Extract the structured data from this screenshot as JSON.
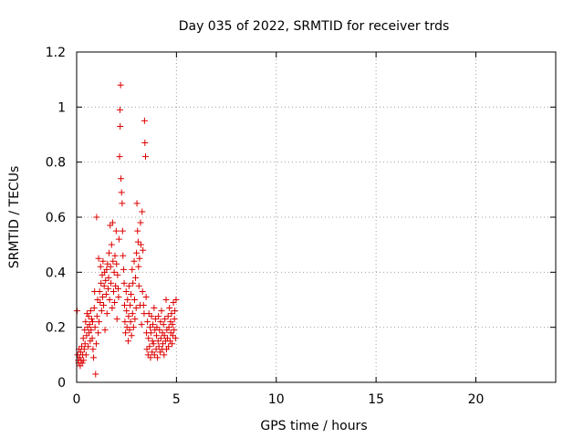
{
  "chart_data": {
    "type": "scatter",
    "title": "Day 035 of 2022, SRMTID for receiver trds",
    "xlabel": "GPS time / hours",
    "ylabel": "SRMTID / TECUs",
    "xlim": [
      0,
      24
    ],
    "ylim": [
      0,
      1.2
    ],
    "x_ticks": [
      0,
      5,
      10,
      15,
      20
    ],
    "x_tick_labels": [
      "0",
      "5",
      "10",
      "15",
      "20"
    ],
    "y_ticks": [
      0,
      0.2,
      0.4,
      0.6,
      0.8,
      1.0,
      1.2
    ],
    "y_tick_labels": [
      "0",
      "0.2",
      "0.4",
      "0.6",
      "0.8",
      "1",
      "1.2"
    ],
    "grid": true,
    "marker": "+",
    "colors": {
      "series": "#dd0000",
      "grid": "#a0a0a0",
      "frame": "#000000"
    },
    "series": [
      {
        "name": "SRMTID",
        "points": [
          [
            0.02,
            0.26
          ],
          [
            0.05,
            0.1
          ],
          [
            0.08,
            0.08
          ],
          [
            0.1,
            0.07
          ],
          [
            0.12,
            0.12
          ],
          [
            0.15,
            0.09
          ],
          [
            0.18,
            0.06
          ],
          [
            0.2,
            0.11
          ],
          [
            0.22,
            0.08
          ],
          [
            0.25,
            0.13
          ],
          [
            0.28,
            0.07
          ],
          [
            0.3,
            0.1
          ],
          [
            0.33,
            0.16
          ],
          [
            0.35,
            0.08
          ],
          [
            0.38,
            0.12
          ],
          [
            0.4,
            0.19
          ],
          [
            0.42,
            0.14
          ],
          [
            0.45,
            0.22
          ],
          [
            0.47,
            0.1
          ],
          [
            0.5,
            0.17
          ],
          [
            0.52,
            0.25
          ],
          [
            0.55,
            0.2
          ],
          [
            0.58,
            0.13
          ],
          [
            0.6,
            0.24
          ],
          [
            0.62,
            0.18
          ],
          [
            0.65,
            0.21
          ],
          [
            0.68,
            0.15
          ],
          [
            0.7,
            0.26
          ],
          [
            0.72,
            0.19
          ],
          [
            0.75,
            0.23
          ],
          [
            0.78,
            0.16
          ],
          [
            0.8,
            0.22
          ],
          [
            0.82,
            0.12
          ],
          [
            0.85,
            0.09
          ],
          [
            0.88,
            0.27
          ],
          [
            0.9,
            0.33
          ],
          [
            0.92,
            0.2
          ],
          [
            0.95,
            0.03
          ],
          [
            0.98,
            0.14
          ],
          [
            1.0,
            0.6
          ],
          [
            1.02,
            0.24
          ],
          [
            1.05,
            0.3
          ],
          [
            1.08,
            0.18
          ],
          [
            1.1,
            0.45
          ],
          [
            1.12,
            0.22
          ],
          [
            1.15,
            0.33
          ],
          [
            1.18,
            0.29
          ],
          [
            1.2,
            0.42
          ],
          [
            1.22,
            0.36
          ],
          [
            1.25,
            0.26
          ],
          [
            1.28,
            0.39
          ],
          [
            1.3,
            0.31
          ],
          [
            1.32,
            0.44
          ],
          [
            1.35,
            0.28
          ],
          [
            1.38,
            0.35
          ],
          [
            1.4,
            0.4
          ],
          [
            1.42,
            0.19
          ],
          [
            1.45,
            0.37
          ],
          [
            1.48,
            0.32
          ],
          [
            1.5,
            0.41
          ],
          [
            1.52,
            0.25
          ],
          [
            1.55,
            0.43
          ],
          [
            1.58,
            0.34
          ],
          [
            1.6,
            0.38
          ],
          [
            1.62,
            0.47
          ],
          [
            1.65,
            0.3
          ],
          [
            1.68,
            0.57
          ],
          [
            1.7,
            0.42
          ],
          [
            1.72,
            0.36
          ],
          [
            1.75,
            0.5
          ],
          [
            1.78,
            0.27
          ],
          [
            1.8,
            0.58
          ],
          [
            1.82,
            0.44
          ],
          [
            1.85,
            0.33
          ],
          [
            1.88,
            0.4
          ],
          [
            1.9,
            0.29
          ],
          [
            1.92,
            0.46
          ],
          [
            1.95,
            0.35
          ],
          [
            1.98,
            0.55
          ],
          [
            2.0,
            0.43
          ],
          [
            2.02,
            0.23
          ],
          [
            2.05,
            0.39
          ],
          [
            2.08,
            0.34
          ],
          [
            2.1,
            0.31
          ],
          [
            2.12,
            0.52
          ],
          [
            2.15,
            0.82
          ],
          [
            2.17,
            0.99
          ],
          [
            2.18,
            0.93
          ],
          [
            2.2,
            1.08
          ],
          [
            2.22,
            0.74
          ],
          [
            2.25,
            0.69
          ],
          [
            2.28,
            0.65
          ],
          [
            2.3,
            0.55
          ],
          [
            2.32,
            0.46
          ],
          [
            2.35,
            0.41
          ],
          [
            2.38,
            0.36
          ],
          [
            2.4,
            0.28
          ],
          [
            2.42,
            0.22
          ],
          [
            2.45,
            0.18
          ],
          [
            2.48,
            0.33
          ],
          [
            2.5,
            0.26
          ],
          [
            2.52,
            0.2
          ],
          [
            2.55,
            0.3
          ],
          [
            2.58,
            0.15
          ],
          [
            2.6,
            0.24
          ],
          [
            2.62,
            0.35
          ],
          [
            2.65,
            0.19
          ],
          [
            2.68,
            0.28
          ],
          [
            2.7,
            0.22
          ],
          [
            2.72,
            0.32
          ],
          [
            2.75,
            0.17
          ],
          [
            2.78,
            0.41
          ],
          [
            2.8,
            0.25
          ],
          [
            2.82,
            0.36
          ],
          [
            2.85,
            0.2
          ],
          [
            2.88,
            0.44
          ],
          [
            2.9,
            0.3
          ],
          [
            2.92,
            0.23
          ],
          [
            2.95,
            0.38
          ],
          [
            2.98,
            0.27
          ],
          [
            3.0,
            0.47
          ],
          [
            3.02,
            0.65
          ],
          [
            3.05,
            0.55
          ],
          [
            3.08,
            0.51
          ],
          [
            3.1,
            0.42
          ],
          [
            3.12,
            0.35
          ],
          [
            3.15,
            0.45
          ],
          [
            3.18,
            0.28
          ],
          [
            3.2,
            0.58
          ],
          [
            3.22,
            0.5
          ],
          [
            3.25,
            0.21
          ],
          [
            3.28,
            0.62
          ],
          [
            3.3,
            0.33
          ],
          [
            3.32,
            0.48
          ],
          [
            3.35,
            0.28
          ],
          [
            3.38,
            0.25
          ],
          [
            3.4,
            0.95
          ],
          [
            3.42,
            0.87
          ],
          [
            3.45,
            0.82
          ],
          [
            3.48,
            0.31
          ],
          [
            3.5,
            0.18
          ],
          [
            3.52,
            0.12
          ],
          [
            3.55,
            0.22
          ],
          [
            3.58,
            0.1
          ],
          [
            3.6,
            0.16
          ],
          [
            3.62,
            0.25
          ],
          [
            3.65,
            0.13
          ],
          [
            3.68,
            0.2
          ],
          [
            3.7,
            0.09
          ],
          [
            3.72,
            0.18
          ],
          [
            3.75,
            0.24
          ],
          [
            3.78,
            0.11
          ],
          [
            3.8,
            0.15
          ],
          [
            3.82,
            0.21
          ],
          [
            3.85,
            0.14
          ],
          [
            3.88,
            0.27
          ],
          [
            3.9,
            0.1
          ],
          [
            3.92,
            0.19
          ],
          [
            3.95,
            0.23
          ],
          [
            3.98,
            0.12
          ],
          [
            4.0,
            0.17
          ],
          [
            4.02,
            0.2
          ],
          [
            4.05,
            0.09
          ],
          [
            4.08,
            0.15
          ],
          [
            4.1,
            0.24
          ],
          [
            4.12,
            0.13
          ],
          [
            4.15,
            0.19
          ],
          [
            4.18,
            0.11
          ],
          [
            4.2,
            0.22
          ],
          [
            4.22,
            0.16
          ],
          [
            4.25,
            0.26
          ],
          [
            4.28,
            0.12
          ],
          [
            4.3,
            0.18
          ],
          [
            4.32,
            0.14
          ],
          [
            4.35,
            0.21
          ],
          [
            4.38,
            0.1
          ],
          [
            4.4,
            0.17
          ],
          [
            4.42,
            0.23
          ],
          [
            4.45,
            0.15
          ],
          [
            4.48,
            0.3
          ],
          [
            4.5,
            0.12
          ],
          [
            4.52,
            0.19
          ],
          [
            4.55,
            0.16
          ],
          [
            4.58,
            0.24
          ],
          [
            4.6,
            0.13
          ],
          [
            4.62,
            0.2
          ],
          [
            4.65,
            0.27
          ],
          [
            4.68,
            0.15
          ],
          [
            4.7,
            0.22
          ],
          [
            4.72,
            0.18
          ],
          [
            4.75,
            0.25
          ],
          [
            4.78,
            0.14
          ],
          [
            4.8,
            0.21
          ],
          [
            4.82,
            0.17
          ],
          [
            4.85,
            0.29
          ],
          [
            4.88,
            0.19
          ],
          [
            4.9,
            0.23
          ],
          [
            4.92,
            0.26
          ],
          [
            4.95,
            0.16
          ],
          [
            4.98,
            0.3
          ]
        ]
      }
    ]
  }
}
